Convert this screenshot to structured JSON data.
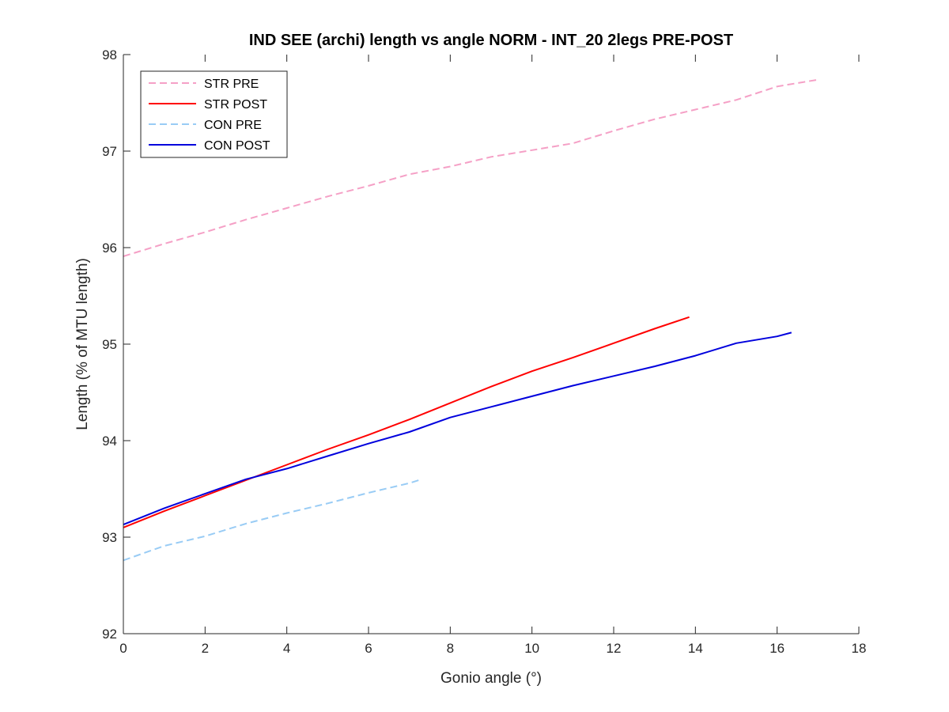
{
  "chart_data": {
    "type": "line",
    "title": "IND SEE (archi) length vs angle NORM - INT_20 2legs PRE-POST",
    "xlabel": "Gonio angle (°)",
    "ylabel": "Length (% of MTU length)",
    "xlim": [
      0,
      18
    ],
    "ylim": [
      92,
      98
    ],
    "xticks": [
      0,
      2,
      4,
      6,
      8,
      10,
      12,
      14,
      16,
      18
    ],
    "yticks": [
      92,
      93,
      94,
      95,
      96,
      97,
      98
    ],
    "grid": false,
    "legend_position": "top-left",
    "series": [
      {
        "name": "STR PRE",
        "color": "#f5a0c6",
        "dash": "dashed",
        "x": [
          0,
          1,
          2,
          3,
          4,
          5,
          6,
          7,
          8,
          9,
          10,
          11,
          12,
          13,
          14,
          15,
          16,
          17
        ],
        "y": [
          95.91,
          96.04,
          96.16,
          96.29,
          96.41,
          96.53,
          96.64,
          96.76,
          96.84,
          96.94,
          97.01,
          97.08,
          97.21,
          97.33,
          97.43,
          97.53,
          97.67,
          97.74
        ]
      },
      {
        "name": "STR POST",
        "color": "#ff0000",
        "dash": "solid",
        "x": [
          0,
          1,
          2,
          3,
          4,
          5,
          6,
          7,
          8,
          9,
          10,
          11,
          12,
          13,
          13.85
        ],
        "y": [
          93.1,
          93.27,
          93.43,
          93.59,
          93.75,
          93.91,
          94.06,
          94.22,
          94.39,
          94.56,
          94.72,
          94.86,
          95.01,
          95.16,
          95.28
        ]
      },
      {
        "name": "CON PRE",
        "color": "#99ccf5",
        "dash": "dashed",
        "x": [
          0,
          1,
          2,
          3,
          4,
          5,
          6,
          7,
          7.3
        ],
        "y": [
          92.76,
          92.91,
          93.01,
          93.14,
          93.25,
          93.35,
          93.46,
          93.56,
          93.6
        ]
      },
      {
        "name": "CON POST",
        "color": "#0000dd",
        "dash": "solid",
        "x": [
          0,
          1,
          2,
          3,
          4,
          5,
          6,
          7,
          8,
          9,
          10,
          11,
          12,
          13,
          14,
          15,
          16,
          16.35
        ],
        "y": [
          93.13,
          93.3,
          93.45,
          93.6,
          93.71,
          93.84,
          93.97,
          94.09,
          94.24,
          94.35,
          94.46,
          94.57,
          94.67,
          94.77,
          94.88,
          95.01,
          95.08,
          95.12
        ]
      }
    ]
  }
}
